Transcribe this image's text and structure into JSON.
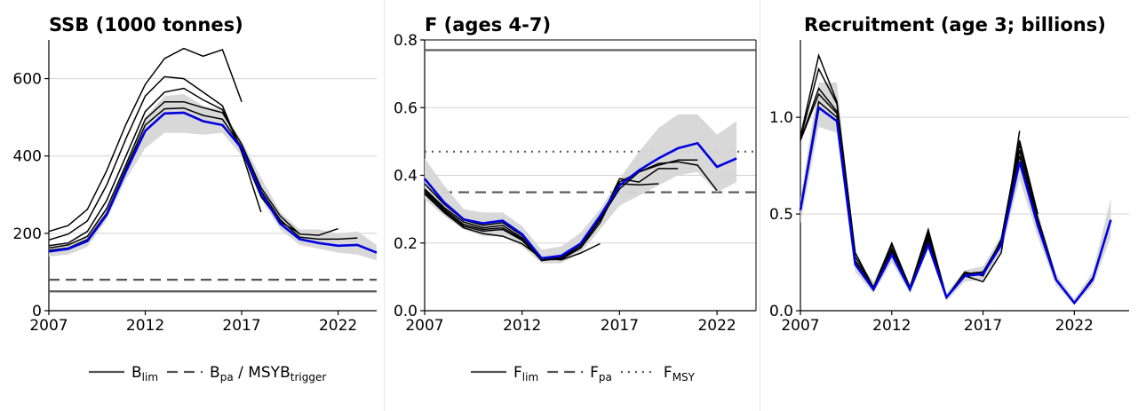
{
  "colors": {
    "retro": "#000000",
    "current": "#0000e0",
    "band": "#d6d6d6",
    "grid": "#d2d2d2",
    "refline": "#555555"
  },
  "chart_data": [
    {
      "type": "line",
      "title": "SSB (1000 tonnes)",
      "xlim": [
        2007,
        2024
      ],
      "ylim": [
        0,
        700
      ],
      "x_ticks": [
        2007,
        2012,
        2017,
        2022
      ],
      "y_ticks": [
        0,
        200,
        400,
        600
      ],
      "grid": "horizontal",
      "reference_lines": [
        {
          "name": "Blim",
          "value": 50,
          "style": "solid"
        },
        {
          "name": "Bpa / MSYBtrigger",
          "value": 80,
          "style": "dashed"
        }
      ],
      "legend": {
        "placement": "bottom",
        "entries": [
          {
            "style": "solid",
            "text": "B",
            "sub": "lim",
            "rest": "",
            "rest_sub": ""
          },
          {
            "style": "dashed",
            "text": "B",
            "sub": "pa",
            "rest": " / MSYB",
            "rest_sub": "trigger"
          }
        ]
      },
      "band": {
        "x": [
          2007,
          2008,
          2009,
          2010,
          2011,
          2012,
          2013,
          2014,
          2015,
          2016,
          2017,
          2018,
          2019,
          2020,
          2021,
          2022,
          2023,
          2024
        ],
        "upper": [
          165,
          170,
          195,
          270,
          380,
          500,
          555,
          560,
          530,
          520,
          440,
          345,
          255,
          210,
          210,
          200,
          205,
          170
        ],
        "lower": [
          140,
          145,
          165,
          235,
          340,
          420,
          460,
          460,
          455,
          460,
          400,
          290,
          210,
          170,
          160,
          150,
          145,
          130
        ]
      },
      "retro_lines": [
        {
          "x": [
            2007,
            2008,
            2009,
            2010,
            2011,
            2012,
            2013,
            2014,
            2015,
            2016,
            2017,
            2018,
            2019,
            2020,
            2021,
            2022,
            2023
          ],
          "y": [
            156,
            162,
            184,
            252,
            368,
            480,
            522,
            524,
            505,
            495,
            423,
            310,
            235,
            190,
            185,
            185,
            188
          ]
        },
        {
          "x": [
            2007,
            2008,
            2009,
            2010,
            2011,
            2012,
            2013,
            2014,
            2015,
            2016,
            2017,
            2018,
            2019,
            2020,
            2021,
            2022
          ],
          "y": [
            162,
            170,
            192,
            264,
            378,
            495,
            540,
            540,
            525,
            512,
            430,
            318,
            245,
            198,
            195,
            212
          ]
        },
        {
          "x": [
            2007,
            2008,
            2009,
            2010,
            2011,
            2012,
            2013,
            2014,
            2015,
            2016,
            2017,
            2018,
            2019,
            2020
          ],
          "y": [
            168,
            175,
            205,
            285,
            400,
            515,
            565,
            575,
            545,
            520,
            415,
            295,
            230,
            200
          ]
        },
        {
          "x": [
            2007,
            2008,
            2009,
            2010,
            2011,
            2012,
            2013,
            2014,
            2015,
            2016,
            2017,
            2018
          ],
          "y": [
            183,
            198,
            232,
            325,
            445,
            555,
            605,
            600,
            565,
            530,
            410,
            255
          ]
        },
        {
          "x": [
            2007,
            2008,
            2009,
            2010,
            2011,
            2012,
            2013,
            2014,
            2015,
            2016,
            2017
          ],
          "y": [
            205,
            220,
            262,
            362,
            482,
            585,
            652,
            678,
            658,
            675,
            540
          ]
        }
      ],
      "current": {
        "x": [
          2007,
          2008,
          2009,
          2010,
          2011,
          2012,
          2013,
          2014,
          2015,
          2016,
          2017,
          2018,
          2019,
          2020,
          2021,
          2022,
          2023,
          2024
        ],
        "y": [
          153,
          160,
          180,
          248,
          360,
          465,
          510,
          512,
          490,
          480,
          420,
          305,
          225,
          185,
          175,
          168,
          170,
          150
        ]
      }
    },
    {
      "type": "line",
      "title": "F (ages 4-7)",
      "xlim": [
        2007,
        2024
      ],
      "ylim": [
        0,
        0.8
      ],
      "x_ticks": [
        2007,
        2012,
        2017,
        2022
      ],
      "y_ticks": [
        0.0,
        0.2,
        0.4,
        0.6,
        0.8
      ],
      "y_tick_labels": [
        "0.0",
        "0.2",
        "0.4",
        "0.6",
        "0.8"
      ],
      "grid": "horizontal",
      "reference_lines": [
        {
          "name": "Flim",
          "value": 0.77,
          "style": "solid"
        },
        {
          "name": "Fpa",
          "value": 0.35,
          "style": "dashed"
        },
        {
          "name": "FMSY",
          "value": 0.47,
          "style": "dotted"
        }
      ],
      "legend": {
        "placement": "bottom",
        "entries": [
          {
            "style": "solid",
            "text": "F",
            "sub": "lim",
            "rest": "",
            "rest_sub": ""
          },
          {
            "style": "dashed",
            "text": "F",
            "sub": "pa",
            "rest": "",
            "rest_sub": ""
          },
          {
            "style": "dotted",
            "text": "F",
            "sub": "MSY",
            "rest": "",
            "rest_sub": ""
          }
        ]
      },
      "band": {
        "x": [
          2007,
          2008,
          2009,
          2010,
          2011,
          2012,
          2013,
          2014,
          2015,
          2016,
          2017,
          2018,
          2019,
          2020,
          2021,
          2022,
          2023
        ],
        "upper": [
          0.45,
          0.37,
          0.3,
          0.29,
          0.29,
          0.25,
          0.18,
          0.19,
          0.23,
          0.3,
          0.39,
          0.47,
          0.54,
          0.58,
          0.58,
          0.52,
          0.56
        ],
        "lower": [
          0.33,
          0.28,
          0.24,
          0.22,
          0.22,
          0.19,
          0.14,
          0.14,
          0.17,
          0.24,
          0.31,
          0.34,
          0.37,
          0.4,
          0.41,
          0.35,
          0.38
        ]
      },
      "retro_lines": [
        {
          "x": [
            2007,
            2008,
            2009,
            2010,
            2011,
            2012,
            2013,
            2014,
            2015,
            2016,
            2017,
            2018,
            2019,
            2020,
            2021,
            2022
          ],
          "y": [
            0.375,
            0.315,
            0.268,
            0.252,
            0.26,
            0.222,
            0.155,
            0.16,
            0.198,
            0.27,
            0.36,
            0.41,
            0.435,
            0.44,
            0.43,
            0.355
          ]
        },
        {
          "x": [
            2007,
            2008,
            2009,
            2010,
            2011,
            2012,
            2013,
            2014,
            2015,
            2016,
            2017,
            2018,
            2019,
            2020,
            2021
          ],
          "y": [
            0.36,
            0.305,
            0.262,
            0.245,
            0.252,
            0.215,
            0.15,
            0.158,
            0.195,
            0.275,
            0.38,
            0.41,
            0.43,
            0.445,
            0.445
          ]
        },
        {
          "x": [
            2007,
            2008,
            2009,
            2010,
            2011,
            2012,
            2013,
            2014,
            2015,
            2016,
            2017,
            2018,
            2019,
            2020
          ],
          "y": [
            0.355,
            0.3,
            0.255,
            0.24,
            0.245,
            0.212,
            0.148,
            0.155,
            0.19,
            0.268,
            0.39,
            0.38,
            0.42,
            0.42
          ]
        },
        {
          "x": [
            2007,
            2008,
            2009,
            2010,
            2011,
            2012,
            2013,
            2014,
            2015,
            2016,
            2017,
            2018,
            2019
          ],
          "y": [
            0.35,
            0.295,
            0.25,
            0.235,
            0.24,
            0.208,
            0.15,
            0.152,
            0.185,
            0.26,
            0.375,
            0.372,
            0.375
          ]
        },
        {
          "x": [
            2007,
            2008,
            2009,
            2010,
            2011,
            2012,
            2013,
            2014,
            2015,
            2016
          ],
          "y": [
            0.345,
            0.29,
            0.245,
            0.228,
            0.22,
            0.198,
            0.155,
            0.15,
            0.17,
            0.198
          ]
        }
      ],
      "current": {
        "x": [
          2007,
          2008,
          2009,
          2010,
          2011,
          2012,
          2013,
          2014,
          2015,
          2016,
          2017,
          2018,
          2019,
          2020,
          2021,
          2022,
          2023
        ],
        "y": [
          0.39,
          0.32,
          0.27,
          0.258,
          0.266,
          0.226,
          0.155,
          0.162,
          0.198,
          0.28,
          0.37,
          0.415,
          0.45,
          0.48,
          0.495,
          0.425,
          0.45
        ]
      }
    },
    {
      "type": "line",
      "title": "Recruitment (age 3; billions)",
      "xlim": [
        2007,
        2025
      ],
      "ylim": [
        0,
        1.4
      ],
      "x_ticks": [
        2007,
        2012,
        2017,
        2022
      ],
      "y_ticks": [
        0.0,
        0.5,
        1.0
      ],
      "y_tick_labels": [
        "0.0",
        "0.5",
        "1.0"
      ],
      "grid": "horizontal",
      "reference_lines": [],
      "band": {
        "x": [
          2007,
          2008,
          2009,
          2010,
          2011,
          2012,
          2013,
          2014,
          2015,
          2016,
          2017,
          2018,
          2019,
          2020,
          2021,
          2022,
          2023,
          2024
        ],
        "upper": [
          0.58,
          1.18,
          1.18,
          0.28,
          0.15,
          0.34,
          0.14,
          0.43,
          0.09,
          0.21,
          0.23,
          0.39,
          0.9,
          0.51,
          0.19,
          0.06,
          0.2,
          0.58
        ],
        "lower": [
          0.45,
          0.95,
          0.92,
          0.2,
          0.09,
          0.25,
          0.09,
          0.32,
          0.05,
          0.15,
          0.16,
          0.3,
          0.68,
          0.38,
          0.13,
          0.03,
          0.13,
          0.38
        ]
      },
      "retro_lines": [
        {
          "x": [
            2007,
            2008,
            2009,
            2010,
            2011,
            2012,
            2013,
            2014,
            2015,
            2016,
            2017,
            2018,
            2019,
            2020,
            2021,
            2022,
            2023
          ],
          "y": [
            0.53,
            1.08,
            1.0,
            0.24,
            0.12,
            0.3,
            0.11,
            0.36,
            0.07,
            0.18,
            0.19,
            0.34,
            0.8,
            0.44,
            0.16,
            0.04,
            0.17
          ]
        },
        {
          "x": [
            2007,
            2008,
            2009,
            2010,
            2011,
            2012,
            2013,
            2014,
            2015,
            2016,
            2017,
            2018,
            2019,
            2020,
            2021,
            2022
          ],
          "y": [
            0.88,
            1.12,
            1.02,
            0.25,
            0.12,
            0.31,
            0.11,
            0.37,
            0.07,
            0.19,
            0.2,
            0.35,
            0.83,
            0.46,
            0.16,
            0.04
          ]
        },
        {
          "x": [
            2007,
            2008,
            2009,
            2010,
            2011,
            2012,
            2013,
            2014,
            2015,
            2016,
            2017,
            2018,
            2019,
            2020,
            2021
          ],
          "y": [
            0.88,
            1.15,
            1.03,
            0.26,
            0.12,
            0.32,
            0.12,
            0.38,
            0.07,
            0.19,
            0.2,
            0.36,
            0.86,
            0.48,
            0.17
          ]
        },
        {
          "x": [
            2007,
            2008,
            2009,
            2010,
            2011,
            2012,
            2013,
            2014,
            2015,
            2016,
            2017,
            2018,
            2019,
            2020
          ],
          "y": [
            0.89,
            1.25,
            1.07,
            0.28,
            0.12,
            0.34,
            0.12,
            0.4,
            0.07,
            0.2,
            0.18,
            0.37,
            0.88,
            0.5
          ]
        },
        {
          "x": [
            2007,
            2008,
            2009,
            2010,
            2011,
            2012,
            2013,
            2014,
            2015,
            2016,
            2017,
            2018,
            2019
          ],
          "y": [
            0.9,
            1.32,
            1.08,
            0.3,
            0.12,
            0.35,
            0.12,
            0.42,
            0.07,
            0.18,
            0.15,
            0.3,
            0.93
          ]
        }
      ],
      "current": {
        "x": [
          2007,
          2008,
          2009,
          2010,
          2011,
          2012,
          2013,
          2014,
          2015,
          2016,
          2017,
          2018,
          2019,
          2020,
          2021,
          2022,
          2023,
          2024
        ],
        "y": [
          0.52,
          1.05,
          0.98,
          0.24,
          0.11,
          0.29,
          0.11,
          0.34,
          0.07,
          0.18,
          0.19,
          0.34,
          0.77,
          0.44,
          0.16,
          0.04,
          0.16,
          0.47
        ]
      }
    }
  ]
}
